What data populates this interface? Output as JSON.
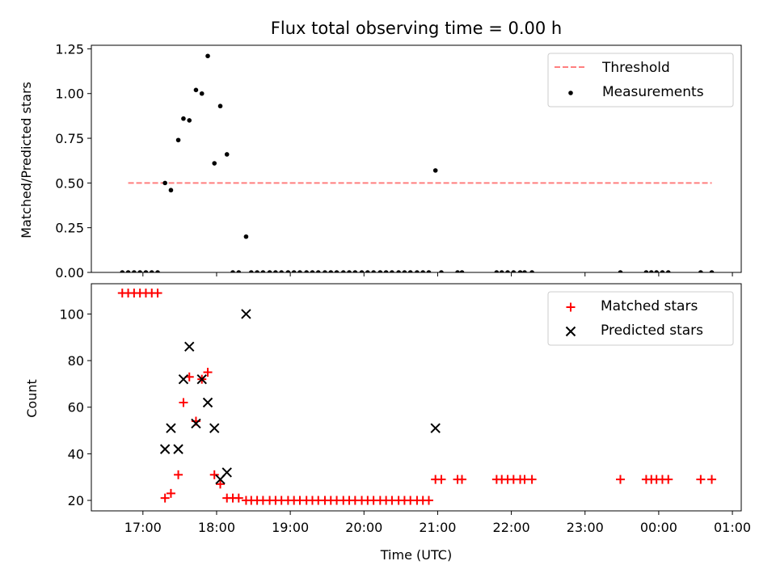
{
  "figure": {
    "title": "Flux total observing time = 0.00 h",
    "xlabel": "Time (UTC)"
  },
  "chart_data": [
    {
      "type": "scatter",
      "ylabel": "Matched/Predicted stars",
      "ylim": [
        0,
        1.27
      ],
      "yticks": [
        0.0,
        0.25,
        0.5,
        0.75,
        1.0,
        1.25
      ],
      "ytick_labels": [
        "0.00",
        "0.25",
        "0.50",
        "0.75",
        "1.00",
        "1.25"
      ],
      "legend": {
        "placement": "upper right",
        "entries": [
          "Threshold",
          "Measurements"
        ]
      },
      "threshold": {
        "name": "Threshold",
        "value": 0.5,
        "x_range": [
          16.8,
          24.72
        ],
        "color": "#ff7f7f"
      },
      "series": [
        {
          "name": "Measurements",
          "color": "#000000",
          "points": [
            [
              16.72,
              0
            ],
            [
              16.8,
              0
            ],
            [
              16.88,
              0
            ],
            [
              16.96,
              0
            ],
            [
              17.04,
              0
            ],
            [
              17.12,
              0
            ],
            [
              17.2,
              0
            ],
            [
              17.3,
              0.5
            ],
            [
              17.38,
              0.46
            ],
            [
              17.48,
              0.74
            ],
            [
              17.55,
              0.86
            ],
            [
              17.63,
              0.85
            ],
            [
              17.72,
              1.02
            ],
            [
              17.8,
              1.0
            ],
            [
              17.88,
              1.21
            ],
            [
              17.97,
              0.61
            ],
            [
              18.05,
              0.93
            ],
            [
              18.14,
              0.66
            ],
            [
              18.22,
              0
            ],
            [
              18.3,
              0
            ],
            [
              18.4,
              0.2
            ],
            [
              18.47,
              0
            ],
            [
              18.55,
              0
            ],
            [
              18.63,
              0
            ],
            [
              18.72,
              0
            ],
            [
              18.8,
              0
            ],
            [
              18.88,
              0
            ],
            [
              18.97,
              0
            ],
            [
              19.05,
              0
            ],
            [
              19.13,
              0
            ],
            [
              19.22,
              0
            ],
            [
              19.3,
              0
            ],
            [
              19.38,
              0
            ],
            [
              19.47,
              0
            ],
            [
              19.55,
              0
            ],
            [
              19.63,
              0
            ],
            [
              19.72,
              0
            ],
            [
              19.8,
              0
            ],
            [
              19.88,
              0
            ],
            [
              19.97,
              0
            ],
            [
              20.05,
              0
            ],
            [
              20.13,
              0
            ],
            [
              20.22,
              0
            ],
            [
              20.3,
              0
            ],
            [
              20.38,
              0
            ],
            [
              20.47,
              0
            ],
            [
              20.55,
              0
            ],
            [
              20.63,
              0
            ],
            [
              20.72,
              0
            ],
            [
              20.8,
              0
            ],
            [
              20.88,
              0
            ],
            [
              20.97,
              0.57
            ],
            [
              21.05,
              0
            ],
            [
              21.27,
              0
            ],
            [
              21.33,
              0
            ],
            [
              21.8,
              0
            ],
            [
              21.87,
              0
            ],
            [
              21.95,
              0
            ],
            [
              22.03,
              0
            ],
            [
              22.12,
              0
            ],
            [
              22.18,
              0
            ],
            [
              22.28,
              0
            ],
            [
              23.48,
              0
            ],
            [
              23.83,
              0
            ],
            [
              23.9,
              0
            ],
            [
              23.97,
              0
            ],
            [
              24.05,
              0
            ],
            [
              24.13,
              0
            ],
            [
              24.57,
              0
            ],
            [
              24.72,
              0
            ]
          ]
        }
      ]
    },
    {
      "type": "scatter",
      "ylabel": "Count",
      "ylim": [
        15.5,
        113
      ],
      "yticks": [
        20,
        40,
        60,
        80,
        100
      ],
      "ytick_labels": [
        "20",
        "40",
        "60",
        "80",
        "100"
      ],
      "xticks": [
        17,
        18,
        19,
        20,
        21,
        22,
        23,
        24,
        25
      ],
      "xtick_labels": [
        "17:00",
        "18:00",
        "19:00",
        "20:00",
        "21:00",
        "22:00",
        "23:00",
        "00:00",
        "01:00"
      ],
      "xlim": [
        16.3,
        25.12
      ],
      "legend": {
        "placement": "upper right",
        "entries": [
          "Matched stars",
          "Predicted stars"
        ]
      },
      "series": [
        {
          "name": "Matched stars",
          "marker": "plus",
          "color": "#ff0000",
          "points": [
            [
              16.72,
              109
            ],
            [
              16.8,
              109
            ],
            [
              16.88,
              109
            ],
            [
              16.96,
              109
            ],
            [
              17.04,
              109
            ],
            [
              17.12,
              109
            ],
            [
              17.2,
              109
            ],
            [
              17.3,
              21
            ],
            [
              17.38,
              23
            ],
            [
              17.48,
              31
            ],
            [
              17.55,
              62
            ],
            [
              17.63,
              73
            ],
            [
              17.72,
              54
            ],
            [
              17.8,
              72
            ],
            [
              17.88,
              75
            ],
            [
              17.97,
              31
            ],
            [
              18.05,
              27
            ],
            [
              18.14,
              21
            ],
            [
              18.22,
              21
            ],
            [
              18.3,
              21
            ],
            [
              18.4,
              20
            ],
            [
              18.47,
              20
            ],
            [
              18.55,
              20
            ],
            [
              18.63,
              20
            ],
            [
              18.72,
              20
            ],
            [
              18.8,
              20
            ],
            [
              18.88,
              20
            ],
            [
              18.97,
              20
            ],
            [
              19.05,
              20
            ],
            [
              19.13,
              20
            ],
            [
              19.22,
              20
            ],
            [
              19.3,
              20
            ],
            [
              19.38,
              20
            ],
            [
              19.47,
              20
            ],
            [
              19.55,
              20
            ],
            [
              19.63,
              20
            ],
            [
              19.72,
              20
            ],
            [
              19.8,
              20
            ],
            [
              19.88,
              20
            ],
            [
              19.97,
              20
            ],
            [
              20.05,
              20
            ],
            [
              20.13,
              20
            ],
            [
              20.22,
              20
            ],
            [
              20.3,
              20
            ],
            [
              20.38,
              20
            ],
            [
              20.47,
              20
            ],
            [
              20.55,
              20
            ],
            [
              20.63,
              20
            ],
            [
              20.72,
              20
            ],
            [
              20.8,
              20
            ],
            [
              20.88,
              20
            ],
            [
              20.97,
              29
            ],
            [
              21.05,
              29
            ],
            [
              21.27,
              29
            ],
            [
              21.33,
              29
            ],
            [
              21.8,
              29
            ],
            [
              21.87,
              29
            ],
            [
              21.95,
              29
            ],
            [
              22.03,
              29
            ],
            [
              22.12,
              29
            ],
            [
              22.18,
              29
            ],
            [
              22.28,
              29
            ],
            [
              23.48,
              29
            ],
            [
              23.83,
              29
            ],
            [
              23.9,
              29
            ],
            [
              23.97,
              29
            ],
            [
              24.05,
              29
            ],
            [
              24.13,
              29
            ],
            [
              24.57,
              29
            ],
            [
              24.72,
              29
            ]
          ]
        },
        {
          "name": "Predicted stars",
          "marker": "x",
          "color": "#000000",
          "points": [
            [
              17.3,
              42
            ],
            [
              17.38,
              51
            ],
            [
              17.48,
              42
            ],
            [
              17.55,
              72
            ],
            [
              17.63,
              86
            ],
            [
              17.72,
              53
            ],
            [
              17.8,
              72
            ],
            [
              17.88,
              62
            ],
            [
              17.97,
              51
            ],
            [
              18.05,
              29
            ],
            [
              18.14,
              32
            ],
            [
              18.4,
              100
            ],
            [
              20.97,
              51
            ]
          ]
        }
      ]
    }
  ]
}
